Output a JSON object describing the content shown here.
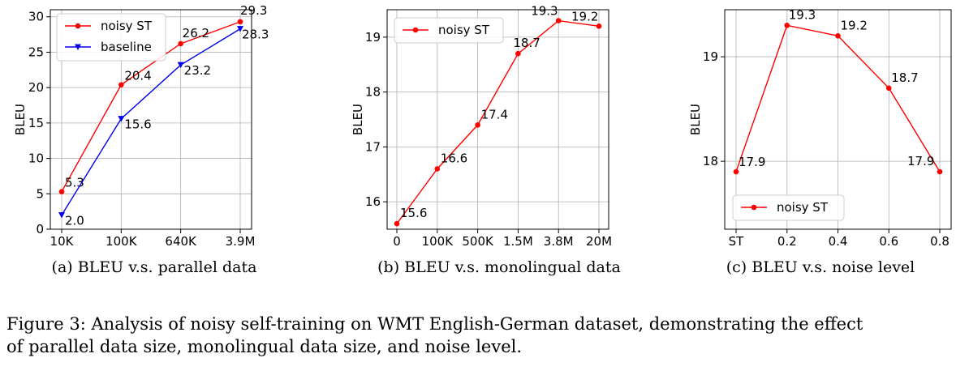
{
  "figure_caption": {
    "line1": "Figure 3: Analysis of noisy self-training on WMT English-German dataset, demonstrating the effect",
    "line2": "of parallel data size, monolingual data size, and noise level."
  },
  "colors": {
    "noisy_st": "#ff0000",
    "baseline": "#0000ee",
    "grid": "#b0b0b0"
  },
  "chart_data": [
    {
      "type": "line",
      "subcaption": "(a)  BLEU v.s. parallel data",
      "ylabel": "BLEU",
      "categories": [
        "10K",
        "100K",
        "640K",
        "3.9M"
      ],
      "ylim": [
        0,
        31
      ],
      "yticks": [
        0,
        5,
        10,
        15,
        20,
        25,
        30
      ],
      "legend_position": "upper-left",
      "grid": true,
      "series": [
        {
          "name": "noisy ST",
          "marker": "circle",
          "color": "#ff0000",
          "values": [
            5.3,
            20.4,
            26.2,
            29.3
          ],
          "labels": [
            "5.3",
            "20.4",
            "26.2",
            "29.3"
          ]
        },
        {
          "name": "baseline",
          "marker": "triangle-down",
          "color": "#0000ee",
          "values": [
            2.0,
            15.6,
            23.2,
            28.3
          ],
          "labels": [
            "2.0",
            "15.6",
            "23.2",
            "28.3"
          ]
        }
      ]
    },
    {
      "type": "line",
      "subcaption": "(b)  BLEU v.s. monolingual data",
      "ylabel": "BLEU",
      "categories": [
        "0",
        "100K",
        "500K",
        "1.5M",
        "3.8M",
        "20M"
      ],
      "ylim": [
        15.5,
        19.5
      ],
      "yticks": [
        16,
        17,
        18,
        19
      ],
      "legend_position": "upper-left",
      "grid": true,
      "series": [
        {
          "name": "noisy ST",
          "marker": "circle",
          "color": "#ff0000",
          "values": [
            15.6,
            16.6,
            17.4,
            18.7,
            19.3,
            19.2
          ],
          "labels": [
            "15.6",
            "16.6",
            "17.4",
            "18.7",
            "19.3",
            "19.2"
          ]
        }
      ]
    },
    {
      "type": "line",
      "subcaption": "(c)  BLEU v.s. noise level",
      "ylabel": "BLEU",
      "categories": [
        "ST",
        "0.2",
        "0.4",
        "0.6",
        "0.8"
      ],
      "ylim": [
        17.35,
        19.45
      ],
      "yticks": [
        18,
        19
      ],
      "legend_position": "lower-left",
      "grid": true,
      "series": [
        {
          "name": "noisy ST",
          "marker": "circle",
          "color": "#ff0000",
          "values": [
            17.9,
            19.3,
            19.2,
            18.7,
            17.9
          ],
          "labels": [
            "17.9",
            "19.3",
            "19.2",
            "18.7",
            "17.9"
          ]
        }
      ]
    }
  ]
}
